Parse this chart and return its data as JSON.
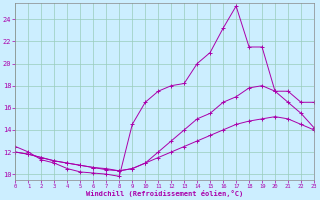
{
  "xlabel": "Windchill (Refroidissement éolien,°C)",
  "bg_color": "#cceeff",
  "line_color": "#aa00aa",
  "grid_color": "#99ccbb",
  "xmin": 0,
  "xmax": 23,
  "ymin": 9.5,
  "ymax": 25.5,
  "yticks": [
    10,
    12,
    14,
    16,
    18,
    20,
    22,
    24
  ],
  "line1_x": [
    0,
    1,
    2,
    3,
    4,
    5,
    6,
    7,
    8,
    9,
    10,
    11,
    12,
    13,
    14,
    15,
    16,
    17,
    18,
    19,
    20,
    21,
    22,
    23
  ],
  "line1_y": [
    12.5,
    12.0,
    11.3,
    11.0,
    10.5,
    10.2,
    10.1,
    10.0,
    9.8,
    14.5,
    16.5,
    17.5,
    18.0,
    18.2,
    20.0,
    21.0,
    23.2,
    25.2,
    21.5,
    21.5,
    17.5,
    16.5,
    15.5,
    14.2
  ],
  "line2_x": [
    0,
    1,
    2,
    3,
    4,
    5,
    6,
    7,
    8,
    9,
    10,
    11,
    12,
    13,
    14,
    15,
    16,
    17,
    18,
    19,
    20,
    21,
    22,
    23
  ],
  "line2_y": [
    12.0,
    11.8,
    11.5,
    11.2,
    11.0,
    10.8,
    10.6,
    10.5,
    10.3,
    10.5,
    11.0,
    12.0,
    13.0,
    14.0,
    15.0,
    15.5,
    16.5,
    17.0,
    17.8,
    18.0,
    17.5,
    17.5,
    16.5,
    16.5
  ],
  "line3_x": [
    0,
    1,
    2,
    3,
    4,
    5,
    6,
    7,
    8,
    9,
    10,
    11,
    12,
    13,
    14,
    15,
    16,
    17,
    18,
    19,
    20,
    21,
    22,
    23
  ],
  "line3_y": [
    12.0,
    11.8,
    11.5,
    11.2,
    11.0,
    10.8,
    10.6,
    10.4,
    10.3,
    10.5,
    11.0,
    11.5,
    12.0,
    12.5,
    13.0,
    13.5,
    14.0,
    14.5,
    14.8,
    15.0,
    15.2,
    15.0,
    14.5,
    14.0
  ]
}
